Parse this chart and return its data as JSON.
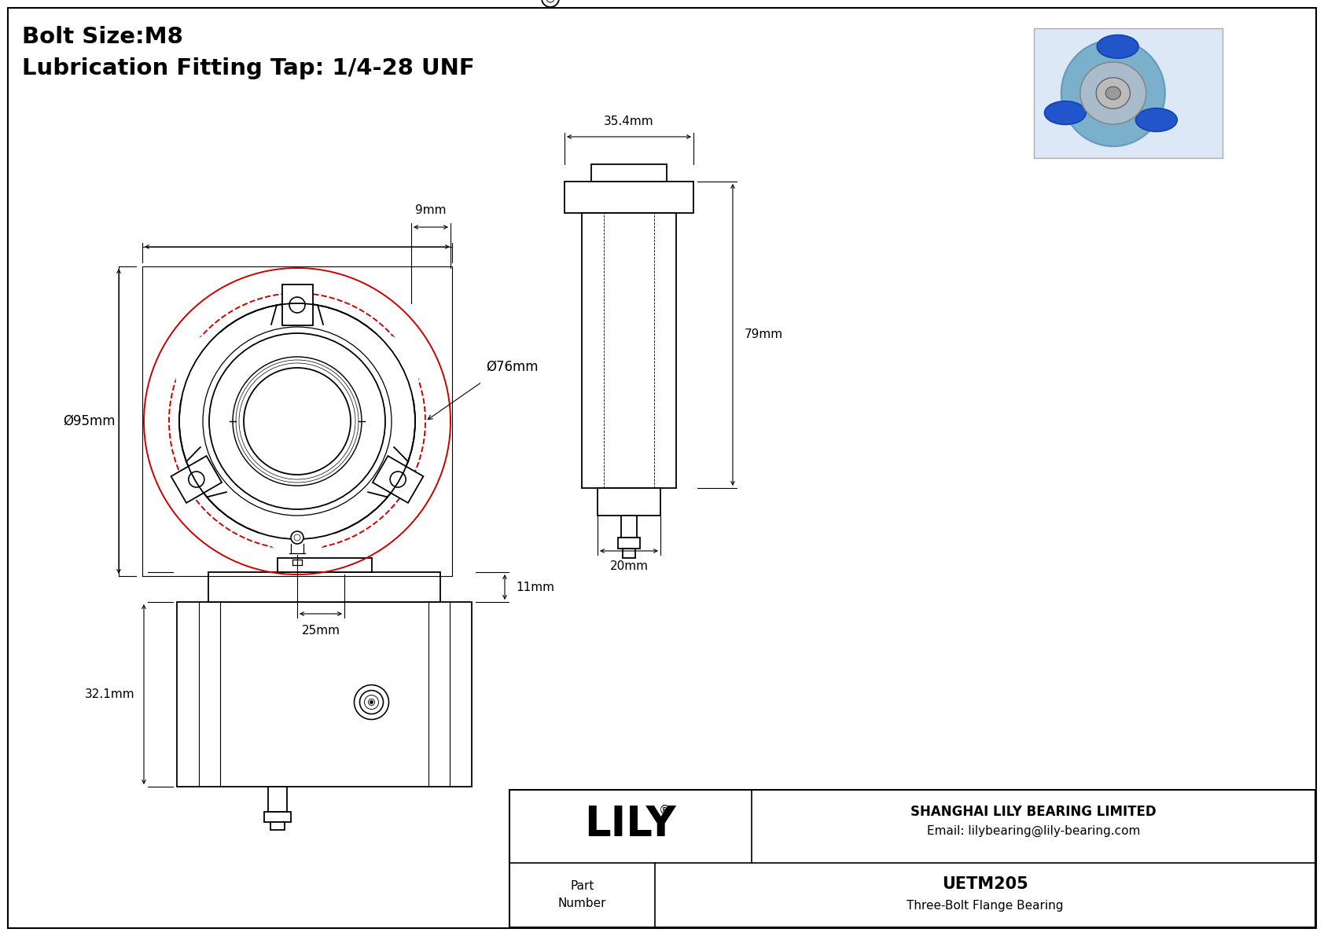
{
  "title_line1": "Bolt Size:M8",
  "title_line2": "Lubrication Fitting Tap: 1/4-28 UNF",
  "bg_color": "#ffffff",
  "dark_color": "#000000",
  "red_color": "#cc0000",
  "gray_line": "#444444",
  "lily_company": "SHANGHAI LILY BEARING LIMITED",
  "lily_email": "Email: lilybearing@lily-bearing.com",
  "part_label": "Part\nNumber",
  "part_number": "UETM205",
  "part_desc": "Three-Bolt Flange Bearing",
  "dim_9mm": "9mm",
  "dim_95mm": "Ø95mm",
  "dim_76mm": "Ø76mm",
  "dim_25mm": "25mm",
  "dim_354mm": "35.4mm",
  "dim_79mm": "79mm",
  "dim_20mm": "20mm",
  "dim_321mm": "32.1mm",
  "dim_11mm": "11mm"
}
